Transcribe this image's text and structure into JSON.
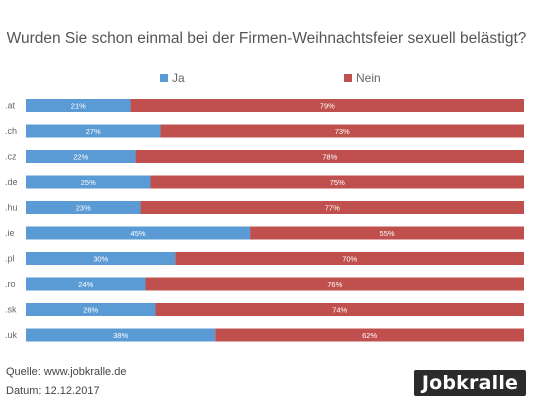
{
  "chart_data": {
    "type": "bar",
    "orientation": "horizontal",
    "stacked": true,
    "title": "Wurden Sie schon einmal bei der Firmen-Weihnachtsfeier  sexuell belästigt?",
    "categories": [
      ".at",
      ".ch",
      ".cz",
      ".de",
      ".hu",
      ".ie",
      ".pl",
      ".ro",
      ".sk",
      ".uk"
    ],
    "series": [
      {
        "name": "Ja",
        "color": "#5b9bd5",
        "values": [
          21,
          27,
          22,
          25,
          23,
          45,
          30,
          24,
          26,
          38
        ],
        "labels": [
          "21%",
          "27%",
          "22%",
          "25%",
          "23%",
          "45%",
          "30%",
          "24%",
          "26%",
          "38%"
        ]
      },
      {
        "name": "Nein",
        "color": "#c0504d",
        "values": [
          79,
          73,
          78,
          75,
          77,
          55,
          70,
          76,
          74,
          62
        ],
        "labels": [
          "79%",
          "73%",
          "78%",
          "75%",
          "77%",
          "55%",
          "70%",
          "76%",
          "74%",
          "62%"
        ]
      }
    ],
    "xlim": [
      0,
      100
    ],
    "legend": "top",
    "grid": false
  },
  "footer": {
    "source": "Quelle: www.jobkralle.de",
    "date": "Datum: 12.12.2017"
  },
  "logo": {
    "text": "Jobkralle"
  }
}
